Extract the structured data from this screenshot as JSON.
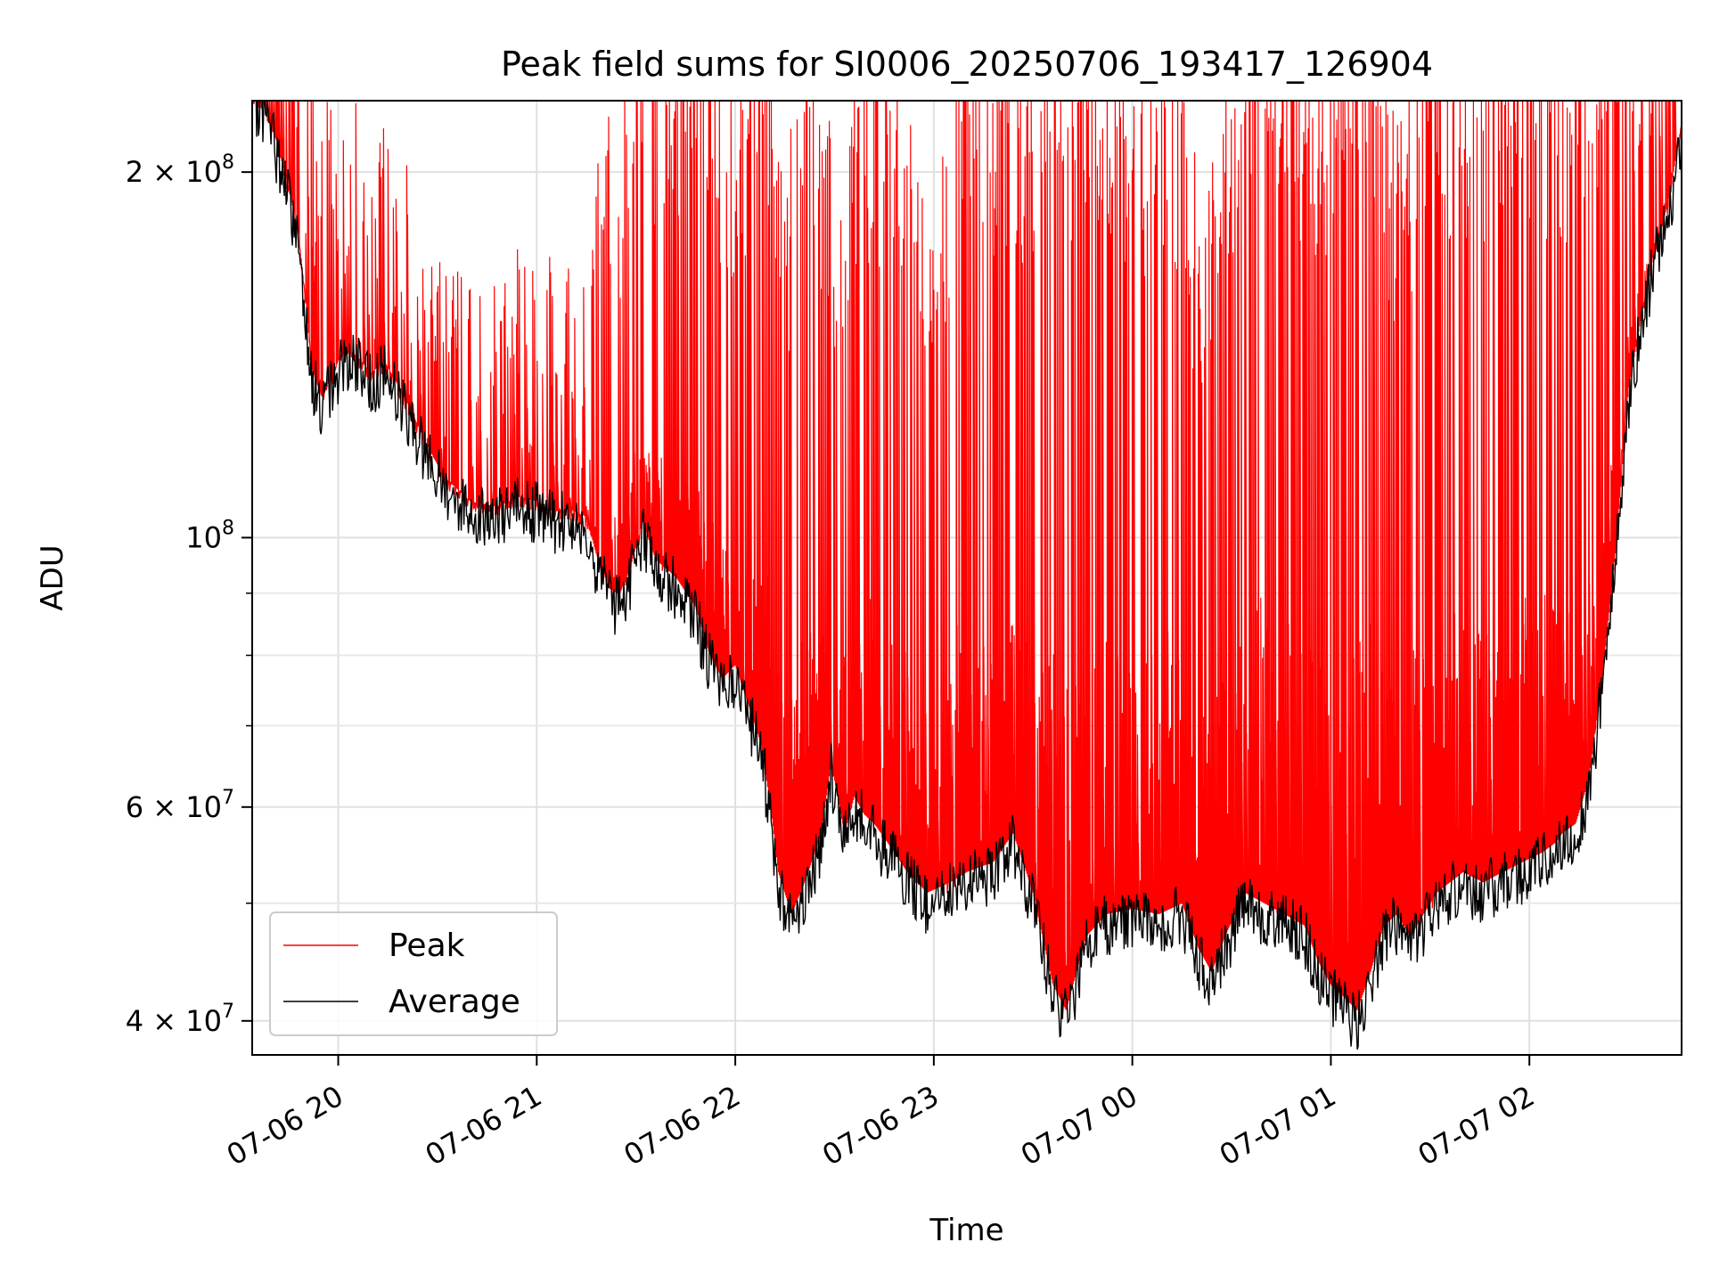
{
  "chart_data": {
    "type": "line",
    "title": "Peak field sums for SI0006_20250706_193417_126904",
    "xlabel": "Time",
    "ylabel": "ADU",
    "yscale": "log",
    "grid": true,
    "legend_placement": "lower-left",
    "xlim": [
      "2025-07-06 19:34",
      "2025-07-07 02:46"
    ],
    "ylim": [
      37500000,
      229000000
    ],
    "x_ticks": [
      {
        "value": "2025-07-06 20:00",
        "label": "07-06 20"
      },
      {
        "value": "2025-07-06 21:00",
        "label": "07-06 21"
      },
      {
        "value": "2025-07-06 22:00",
        "label": "07-06 22"
      },
      {
        "value": "2025-07-06 23:00",
        "label": "07-06 23"
      },
      {
        "value": "2025-07-07 00:00",
        "label": "07-07 00"
      },
      {
        "value": "2025-07-07 01:00",
        "label": "07-07 01"
      },
      {
        "value": "2025-07-07 02:00",
        "label": "07-07 02"
      }
    ],
    "y_ticks": [
      {
        "value": 40000000,
        "base": "4 × 10",
        "exp": "7"
      },
      {
        "value": 60000000,
        "base": "6 × 10",
        "exp": "7"
      },
      {
        "value": 100000000,
        "base": "10",
        "exp": "8"
      },
      {
        "value": 200000000,
        "base": "2 × 10",
        "exp": "8"
      }
    ],
    "y_minor_ticks": [
      50000000,
      70000000,
      80000000,
      90000000
    ],
    "series": [
      {
        "name": "Peak",
        "color": "#ff0000",
        "x": [
          "2025-07-06 19:34",
          "2025-07-06 19:40",
          "2025-07-06 19:44",
          "2025-07-06 19:48",
          "2025-07-06 19:52",
          "2025-07-06 19:56",
          "2025-07-06 20:00",
          "2025-07-06 20:06",
          "2025-07-06 20:12",
          "2025-07-06 20:20",
          "2025-07-06 20:30",
          "2025-07-06 20:40",
          "2025-07-06 20:50",
          "2025-07-06 21:00",
          "2025-07-06 21:10",
          "2025-07-06 21:15",
          "2025-07-06 21:20",
          "2025-07-06 21:30",
          "2025-07-06 21:40",
          "2025-07-06 21:50",
          "2025-07-06 22:00",
          "2025-07-06 22:10",
          "2025-07-06 22:15",
          "2025-07-06 22:20",
          "2025-07-06 22:30",
          "2025-07-06 22:40",
          "2025-07-06 22:50",
          "2025-07-06 23:00",
          "2025-07-06 23:10",
          "2025-07-06 23:20",
          "2025-07-06 23:30",
          "2025-07-06 23:40",
          "2025-07-06 23:50",
          "2025-07-07 00:00",
          "2025-07-07 00:10",
          "2025-07-07 00:20",
          "2025-07-07 00:30",
          "2025-07-07 00:40",
          "2025-07-07 00:50",
          "2025-07-07 01:00",
          "2025-07-07 01:10",
          "2025-07-07 01:20",
          "2025-07-07 01:30",
          "2025-07-07 01:40",
          "2025-07-07 01:50",
          "2025-07-07 02:00",
          "2025-07-07 02:10",
          "2025-07-07 02:20",
          "2025-07-07 02:30",
          "2025-07-07 02:40",
          "2025-07-07 02:46"
        ],
        "y": [
          229000000,
          225000000,
          210000000,
          180000000,
          165000000,
          150000000,
          148000000,
          142000000,
          136000000,
          126000000,
          112000000,
          108000000,
          110000000,
          109000000,
          104000000,
          102000000,
          140000000,
          175000000,
          170000000,
          190000000,
          150000000,
          185000000,
          120000000,
          180000000,
          135000000,
          165000000,
          150000000,
          125000000,
          190000000,
          160000000,
          170000000,
          175000000,
          178000000,
          150000000,
          170000000,
          130000000,
          160000000,
          190000000,
          175000000,
          160000000,
          210000000,
          140000000,
          185000000,
          170000000,
          175000000,
          180000000,
          170000000,
          175000000,
          190000000,
          210000000,
          229000000
        ]
      },
      {
        "name": "Average",
        "color": "#000000",
        "x": [
          "2025-07-06 19:34",
          "2025-07-06 19:37",
          "2025-07-06 19:40",
          "2025-07-06 19:44",
          "2025-07-06 19:48",
          "2025-07-06 19:50",
          "2025-07-06 19:52",
          "2025-07-06 19:55",
          "2025-07-06 19:58",
          "2025-07-06 20:02",
          "2025-07-06 20:06",
          "2025-07-06 20:10",
          "2025-07-06 20:14",
          "2025-07-06 20:18",
          "2025-07-06 20:22",
          "2025-07-06 20:26",
          "2025-07-06 20:32",
          "2025-07-06 20:40",
          "2025-07-06 20:48",
          "2025-07-06 20:55",
          "2025-07-06 21:00",
          "2025-07-06 21:05",
          "2025-07-06 21:10",
          "2025-07-06 21:15",
          "2025-07-06 21:18",
          "2025-07-06 21:22",
          "2025-07-06 21:25",
          "2025-07-06 21:28",
          "2025-07-06 21:32",
          "2025-07-06 21:36",
          "2025-07-06 21:42",
          "2025-07-06 21:48",
          "2025-07-06 21:52",
          "2025-07-06 21:56",
          "2025-07-06 22:00",
          "2025-07-06 22:05",
          "2025-07-06 22:08",
          "2025-07-06 22:11",
          "2025-07-06 22:13",
          "2025-07-06 22:17",
          "2025-07-06 22:21",
          "2025-07-06 22:26",
          "2025-07-06 22:29",
          "2025-07-06 22:33",
          "2025-07-06 22:36",
          "2025-07-06 22:39",
          "2025-07-06 22:42",
          "2025-07-06 22:46",
          "2025-07-06 22:52",
          "2025-07-06 22:58",
          "2025-07-06 23:05",
          "2025-07-06 23:10",
          "2025-07-06 23:18",
          "2025-07-06 23:24",
          "2025-07-06 23:30",
          "2025-07-06 23:36",
          "2025-07-06 23:40",
          "2025-07-06 23:46",
          "2025-07-06 23:52",
          "2025-07-07 00:00",
          "2025-07-07 00:08",
          "2025-07-07 00:15",
          "2025-07-07 00:20",
          "2025-07-07 00:24",
          "2025-07-07 00:28",
          "2025-07-07 00:34",
          "2025-07-07 00:40",
          "2025-07-07 00:46",
          "2025-07-07 00:52",
          "2025-07-07 00:56",
          "2025-07-07 01:00",
          "2025-07-07 01:04",
          "2025-07-07 01:08",
          "2025-07-07 01:12",
          "2025-07-07 01:16",
          "2025-07-07 01:20",
          "2025-07-07 01:24",
          "2025-07-07 01:28",
          "2025-07-07 01:32",
          "2025-07-07 01:36",
          "2025-07-07 01:40",
          "2025-07-07 01:46",
          "2025-07-07 01:52",
          "2025-07-07 01:58",
          "2025-07-07 02:04",
          "2025-07-07 02:08",
          "2025-07-07 02:10",
          "2025-07-07 02:14",
          "2025-07-07 02:18",
          "2025-07-07 02:22",
          "2025-07-07 02:26",
          "2025-07-07 02:30",
          "2025-07-07 02:34",
          "2025-07-07 02:38",
          "2025-07-07 02:42",
          "2025-07-07 02:46"
        ],
        "y": [
          228000000,
          225000000,
          215000000,
          195000000,
          175000000,
          155000000,
          135000000,
          128000000,
          133000000,
          141000000,
          138000000,
          134000000,
          137000000,
          131000000,
          125000000,
          118000000,
          110000000,
          105000000,
          104000000,
          106000000,
          105000000,
          103000000,
          103500000,
          102000000,
          95000000,
          89000000,
          88000000,
          92000000,
          101000000,
          94000000,
          91000000,
          86000000,
          79000000,
          75000000,
          77000000,
          70000000,
          66000000,
          58000000,
          52000000,
          48000000,
          51000000,
          56000000,
          64000000,
          56000000,
          60000000,
          58000000,
          57000000,
          55000000,
          52000000,
          50000000,
          51000000,
          52000000,
          53000000,
          56000000,
          50000000,
          42000000,
          40000000,
          46000000,
          48000000,
          48500000,
          48000000,
          49000000,
          45000000,
          43000000,
          46000000,
          50000000,
          49000000,
          48000000,
          47000000,
          44000000,
          42000000,
          41000000,
          40000000,
          43000000,
          47000000,
          48000000,
          46000000,
          48000000,
          50000000,
          51000000,
          52000000,
          51000000,
          52000000,
          53000000,
          54000000,
          55000000,
          56000000,
          57000000,
          62000000,
          75000000,
          95000000,
          130000000,
          150000000,
          170000000,
          185000000,
          215000000
        ]
      }
    ]
  }
}
